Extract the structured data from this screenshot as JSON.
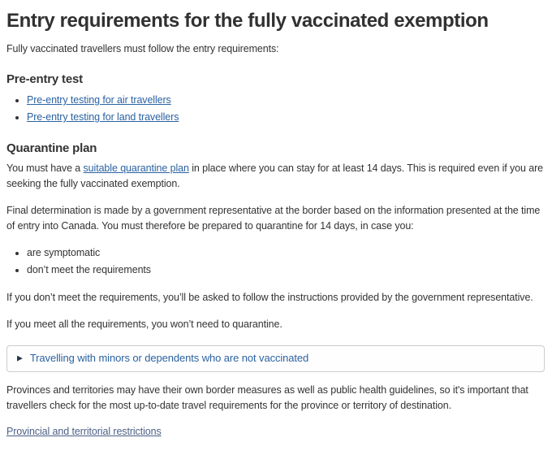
{
  "page": {
    "title": "Entry requirements for the fully vaccinated exemption",
    "intro": "Fully vaccinated travellers must follow the entry requirements:"
  },
  "pre_entry_test": {
    "heading": "Pre-entry test",
    "links": [
      {
        "label": "Pre-entry testing for air travellers"
      },
      {
        "label": "Pre-entry testing for land travellers"
      }
    ]
  },
  "quarantine_plan": {
    "heading": "Quarantine plan",
    "para1_before_link": "You must have a ",
    "para1_link": "suitable quarantine plan",
    "para1_after_link": " in place where you can stay for at least 14 days. This is required even if you are seeking the fully vaccinated exemption.",
    "para2": "Final determination is made by a government representative at the border based on the information presented at the time of entry into Canada. You must therefore be prepared to quarantine for 14 days, in case you:",
    "bullets": [
      "are symptomatic",
      "don’t meet the requirements"
    ],
    "para3": "If you don’t meet the requirements, you’ll be asked to follow the instructions provided by the government representative.",
    "para4": "If you meet all the requirements, you won’t need to quarantine."
  },
  "details_expander": {
    "marker_icon": "▶",
    "summary": "Travelling with minors or dependents who are not vaccinated"
  },
  "provinces_section": {
    "para": "Provinces and territories may have their own border measures as well as public health guidelines, so it's important that travellers check for the most up-to-date travel requirements for the province or territory of destination.",
    "link": "Provincial and territorial restrictions"
  },
  "colors": {
    "text": "#333333",
    "link_blue": "#2b62a1",
    "bottom_link_slate": "#4a5f85",
    "expander_border": "#cccccc",
    "expander_marker_navy": "#26374a"
  }
}
